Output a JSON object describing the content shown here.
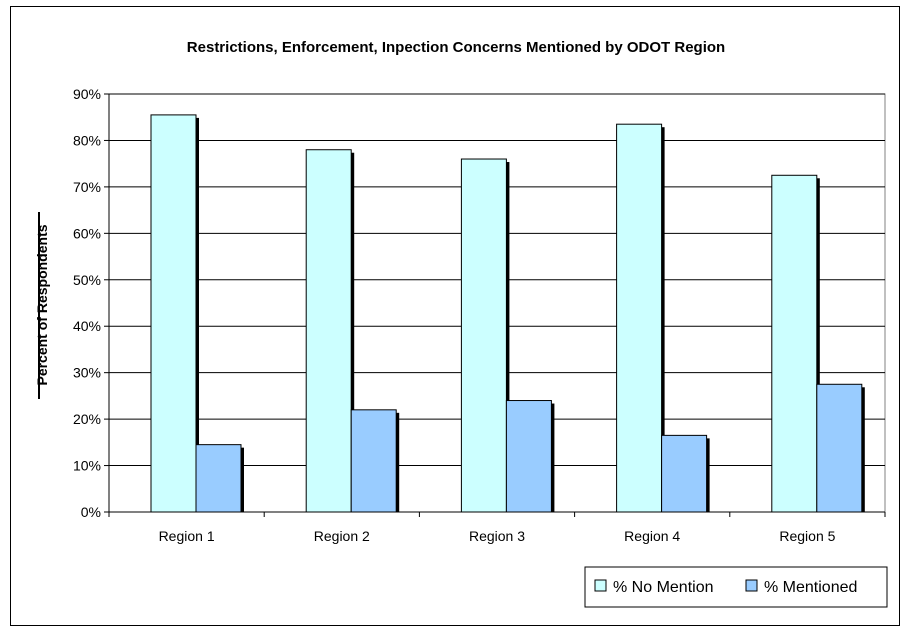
{
  "chart_data": {
    "type": "bar",
    "title": "Restrictions, Enforcement, Inpection Concerns Mentioned by ODOT Region",
    "xlabel": "",
    "ylabel": "Percent of Respondents",
    "ylim": [
      0,
      90
    ],
    "ytick_step": 10,
    "ytick_format": "percent",
    "grid": true,
    "legend_position": "bottom-right",
    "categories": [
      "Region 1",
      "Region 2",
      "Region 3",
      "Region 4",
      "Region 5"
    ],
    "series": [
      {
        "name": "% No Mention",
        "color": "#ccffff",
        "values": [
          85.5,
          78,
          76,
          83.5,
          72.5
        ]
      },
      {
        "name": "% Mentioned",
        "color": "#99ccff",
        "values": [
          14.5,
          22,
          24,
          16.5,
          27.5
        ]
      }
    ]
  }
}
